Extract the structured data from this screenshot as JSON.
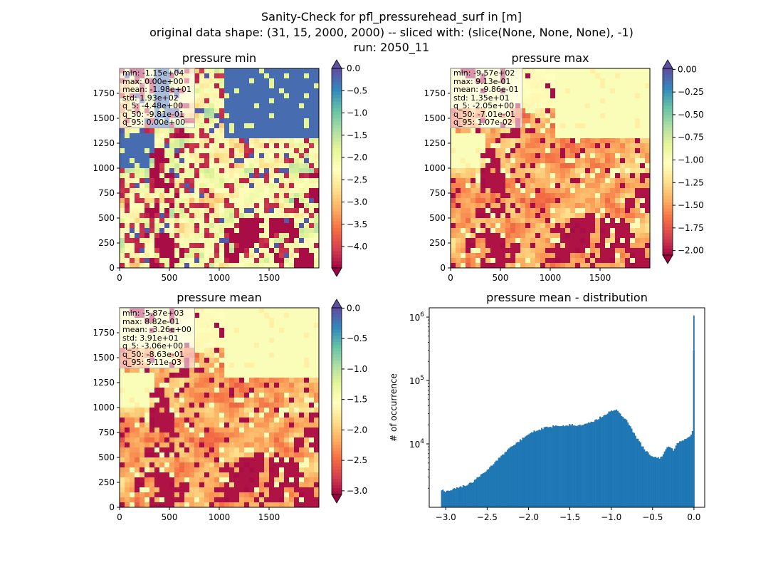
{
  "figure": {
    "title_lines": [
      "Sanity-Check for pfl_pressurehead_surf in [m]",
      "original data shape: (31, 15, 2000, 2000) -- sliced with: (slice(None, None, None), -1)",
      "run: 2050_11"
    ]
  },
  "colormap": "Spectral",
  "chart_data": [
    {
      "type": "heatmap",
      "title": "pressure min",
      "x_ticks": [
        "0",
        "500",
        "1000",
        "1500"
      ],
      "y_ticks": [
        "0",
        "250",
        "500",
        "750",
        "1000",
        "1250",
        "1500",
        "1750"
      ],
      "xlim": [
        0,
        2000
      ],
      "ylim": [
        0,
        2000
      ],
      "colorbar": {
        "range": [
          -4.48,
          0.0
        ],
        "ticks": [
          "0.0",
          "−0.5",
          "−1.0",
          "−1.5",
          "−2.0",
          "−2.5",
          "−3.0",
          "−3.5",
          "−4.0"
        ],
        "extend": "both"
      },
      "stats": [
        "min: -1.15e+04",
        "max: 0.00e+00",
        "mean: -1.98e+01",
        "std: 1.93e+02",
        "q_5: -4.48e+00",
        "q_50: -9.81e-01",
        "q_95: 0.00e+00"
      ]
    },
    {
      "type": "heatmap",
      "title": "pressure max",
      "x_ticks": [
        "0",
        "500",
        "1000",
        "1500"
      ],
      "y_ticks": [
        "0",
        "250",
        "500",
        "750",
        "1000",
        "1250",
        "1500",
        "1750"
      ],
      "xlim": [
        0,
        2000
      ],
      "ylim": [
        0,
        2000
      ],
      "colorbar": {
        "range": [
          -2.05,
          0.0107
        ],
        "ticks": [
          "0.00",
          "−0.25",
          "−0.50",
          "−0.75",
          "−1.00",
          "−1.25",
          "−1.50",
          "−1.75",
          "−2.00"
        ],
        "extend": "both"
      },
      "stats": [
        "min: -9.57e+02",
        "max: 9.13e-01",
        "mean: -9.86e-01",
        "std: 1.35e+01",
        "q_5: -2.05e+00",
        "q_50: -7.01e-01",
        "q_95: 1.07e-02"
      ]
    },
    {
      "type": "heatmap",
      "title": "pressure mean",
      "x_ticks": [
        "0",
        "500",
        "1000",
        "1500"
      ],
      "y_ticks": [
        "0",
        "250",
        "500",
        "750",
        "1000",
        "1250",
        "1500",
        "1750"
      ],
      "xlim": [
        0,
        2000
      ],
      "ylim": [
        0,
        2000
      ],
      "colorbar": {
        "range": [
          -3.06,
          0.00511
        ],
        "ticks": [
          "0.0",
          "−0.5",
          "−1.0",
          "−1.5",
          "−2.0",
          "−2.5",
          "−3.0"
        ],
        "extend": "both"
      },
      "stats": [
        "min: -5.87e+03",
        "max: 8.82e-01",
        "mean: -3.26e+00",
        "std: 3.91e+01",
        "q_5: -3.06e+00",
        "q_50: -8.63e-01",
        "q_95: 5.11e-03"
      ]
    },
    {
      "type": "bar",
      "title": "pressure mean - distribution",
      "xlabel": "",
      "ylabel": "# of occurrence",
      "y_scale": "log",
      "xlim": [
        -3.2,
        0.13
      ],
      "ylim": [
        1000,
        1400000
      ],
      "x_ticks": [
        "−3.0",
        "−2.5",
        "−2.0",
        "−1.5",
        "−1.0",
        "−0.5",
        "0.0"
      ],
      "y_ticks": [
        "10^4",
        "10^5",
        "10^6"
      ],
      "bar_color": "#1f77b4",
      "bin_width": 0.01531,
      "points": [
        [
          -3.05,
          1900
        ],
        [
          -3.0,
          1800
        ],
        [
          -2.9,
          1950
        ],
        [
          -2.8,
          2150
        ],
        [
          -2.7,
          2400
        ],
        [
          -2.6,
          3000
        ],
        [
          -2.5,
          3900
        ],
        [
          -2.4,
          5300
        ],
        [
          -2.3,
          7100
        ],
        [
          -2.2,
          9200
        ],
        [
          -2.1,
          11500
        ],
        [
          -2.0,
          14000
        ],
        [
          -1.9,
          16500
        ],
        [
          -1.8,
          18000
        ],
        [
          -1.7,
          19000
        ],
        [
          -1.6,
          19000
        ],
        [
          -1.5,
          20000
        ],
        [
          -1.4,
          19500
        ],
        [
          -1.3,
          20500
        ],
        [
          -1.2,
          23000
        ],
        [
          -1.1,
          28000
        ],
        [
          -1.0,
          33000
        ],
        [
          -0.95,
          34500
        ],
        [
          -0.9,
          31000
        ],
        [
          -0.8,
          22000
        ],
        [
          -0.7,
          13000
        ],
        [
          -0.6,
          8200
        ],
        [
          -0.5,
          6300
        ],
        [
          -0.45,
          6000
        ],
        [
          -0.4,
          6100
        ],
        [
          -0.3,
          9500
        ],
        [
          -0.25,
          8000
        ],
        [
          -0.2,
          10200
        ],
        [
          -0.1,
          12000
        ],
        [
          -0.05,
          13500
        ],
        [
          -0.02,
          15000
        ],
        [
          -0.01,
          22000
        ],
        [
          0.0,
          1060000
        ]
      ]
    }
  ]
}
